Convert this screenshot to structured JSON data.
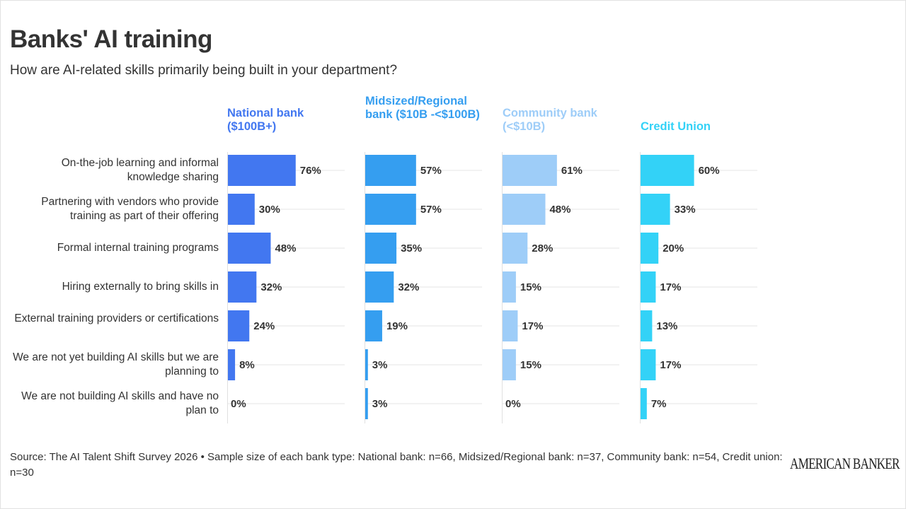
{
  "title": "Banks' AI training",
  "subtitle": "How are AI-related skills primarily being built in your department?",
  "source": "Source: The AI Talent Shift Survey 2026 • Sample size of each bank type: National bank: n=66, Midsized/Regional bank: n=37, Community bank: n=54, Credit union: n=30",
  "logo": "AMERICAN BANKER",
  "colors": {
    "national": "#4277f0",
    "midsized": "#359ef0",
    "community": "#9ecdf8",
    "credit_union": "#33d2f7",
    "gridline": "#e6e6e6"
  },
  "headers": {
    "national": "National bank ($100B+)",
    "midsized": "Midsized/Regional bank ($10B -<$100B)",
    "community": "Community bank (<$10B)",
    "credit_union": "Credit Union"
  },
  "chart_data": {
    "type": "bar",
    "orientation": "horizontal",
    "title": "Banks' AI training",
    "subtitle": "How are AI-related skills primarily being built in your department?",
    "value_suffix": "%",
    "xlim": [
      0,
      100
    ],
    "categories": [
      "On-the-job learning and informal knowledge sharing",
      "Partnering with vendors who provide training as part of their offering",
      "Formal internal training programs",
      "Hiring externally to bring skills in",
      "External training providers or certifications",
      "We are not yet building AI skills but we are planning to",
      "We are not building AI skills and have no plan to"
    ],
    "series": [
      {
        "name": "National bank ($100B+)",
        "values": [
          76,
          30,
          48,
          32,
          24,
          8,
          0
        ]
      },
      {
        "name": "Midsized/Regional bank ($10B -<$100B)",
        "values": [
          57,
          57,
          35,
          32,
          19,
          3,
          3
        ]
      },
      {
        "name": "Community bank (<$10B)",
        "values": [
          61,
          48,
          28,
          15,
          17,
          15,
          0
        ]
      },
      {
        "name": "Credit Union",
        "values": [
          60,
          33,
          20,
          17,
          13,
          17,
          7
        ]
      }
    ]
  }
}
